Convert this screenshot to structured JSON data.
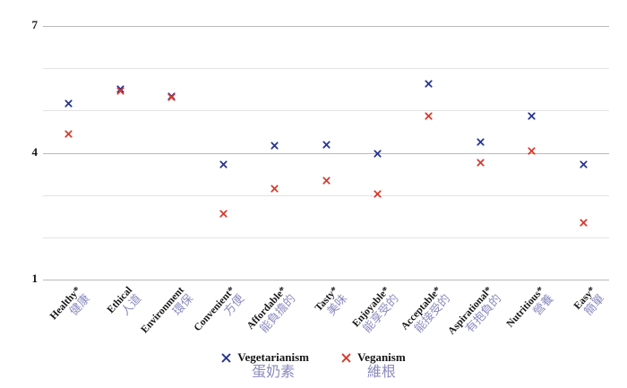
{
  "chart_data": {
    "type": "scatter",
    "title": "",
    "xlabel": "",
    "ylabel": "",
    "ylim": [
      1,
      7
    ],
    "yticks": [
      1,
      2,
      3,
      4,
      5,
      6,
      7
    ],
    "ytick_labels_shown": [
      "1",
      "4",
      "7"
    ],
    "grid": "horizontal",
    "legend_position": "bottom",
    "marker": "x",
    "categories": [
      {
        "en": "Healthy*",
        "zh": "健康"
      },
      {
        "en": "Ethical",
        "zh": "人道"
      },
      {
        "en": "Environment",
        "zh": "環保"
      },
      {
        "en": "Convenient*",
        "zh": "方便"
      },
      {
        "en": "Affordable*",
        "zh": "能負擔的"
      },
      {
        "en": "Tasty*",
        "zh": "美味"
      },
      {
        "en": "Enjoyable*",
        "zh": "能享受的"
      },
      {
        "en": "Acceptable*",
        "zh": "能接受的"
      },
      {
        "en": "Aspirational*",
        "zh": "有抱負的"
      },
      {
        "en": "Nutritious*",
        "zh": "營養"
      },
      {
        "en": "Easy*",
        "zh": "簡單"
      }
    ],
    "series": [
      {
        "name": "Vegetarianism",
        "name_zh": "蛋奶素",
        "color": "#283593",
        "values": [
          5.17,
          5.5,
          5.33,
          3.73,
          4.17,
          4.2,
          3.98,
          5.63,
          4.26,
          4.87,
          3.72
        ]
      },
      {
        "name": "Veganism",
        "name_zh": "維根",
        "color": "#d93a2e",
        "values": [
          4.45,
          5.47,
          5.31,
          2.55,
          3.15,
          3.34,
          3.02,
          4.87,
          3.77,
          4.04,
          2.34
        ]
      }
    ]
  },
  "colors": {
    "grid_minor": "#e3e3e3",
    "grid_major": "#b9b9b9",
    "chinese_label": "#8a8abf",
    "text": "#151515",
    "background": "#ffffff"
  }
}
